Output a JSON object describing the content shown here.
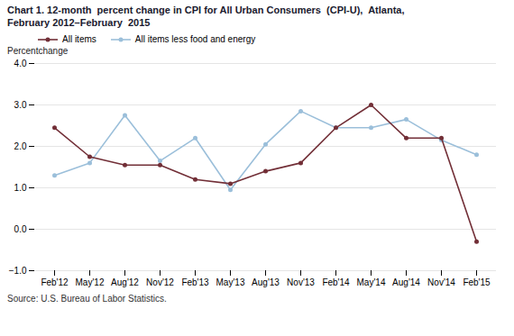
{
  "chart_data": {
    "type": "line",
    "title": "Chart 1. 12-month  percent change in CPI for All Urban Consumers  (CPI-U),  Atlanta,",
    "subtitle": "February 2012–February  2015",
    "y_label": "Percentchange",
    "source": "Source: U.S. Bureau of Labor Statistics.",
    "categories": [
      "Feb'12",
      "May'12",
      "Aug'12",
      "Nov'12",
      "Feb'13",
      "May'13",
      "Aug'13",
      "Nov'13",
      "Feb'14",
      "May'14",
      "Aug'14",
      "Nov'14",
      "Feb'15"
    ],
    "series": [
      {
        "name": "All items",
        "color": "#722F37",
        "marker": "circle",
        "values": [
          2.45,
          1.75,
          1.55,
          1.55,
          1.2,
          1.1,
          1.4,
          1.6,
          2.45,
          3.0,
          2.2,
          2.2,
          -0.3
        ]
      },
      {
        "name": "All items less food and energy",
        "color": "#9BBFDA",
        "marker": "circle",
        "values": [
          1.3,
          1.6,
          2.75,
          1.65,
          2.2,
          0.95,
          2.05,
          2.85,
          2.45,
          2.45,
          2.65,
          2.15,
          1.8
        ]
      }
    ],
    "ylim": [
      -1,
      4
    ],
    "yticks": [
      -1,
      0,
      1,
      2,
      3,
      4
    ],
    "grid": true,
    "legend": "upper left"
  }
}
